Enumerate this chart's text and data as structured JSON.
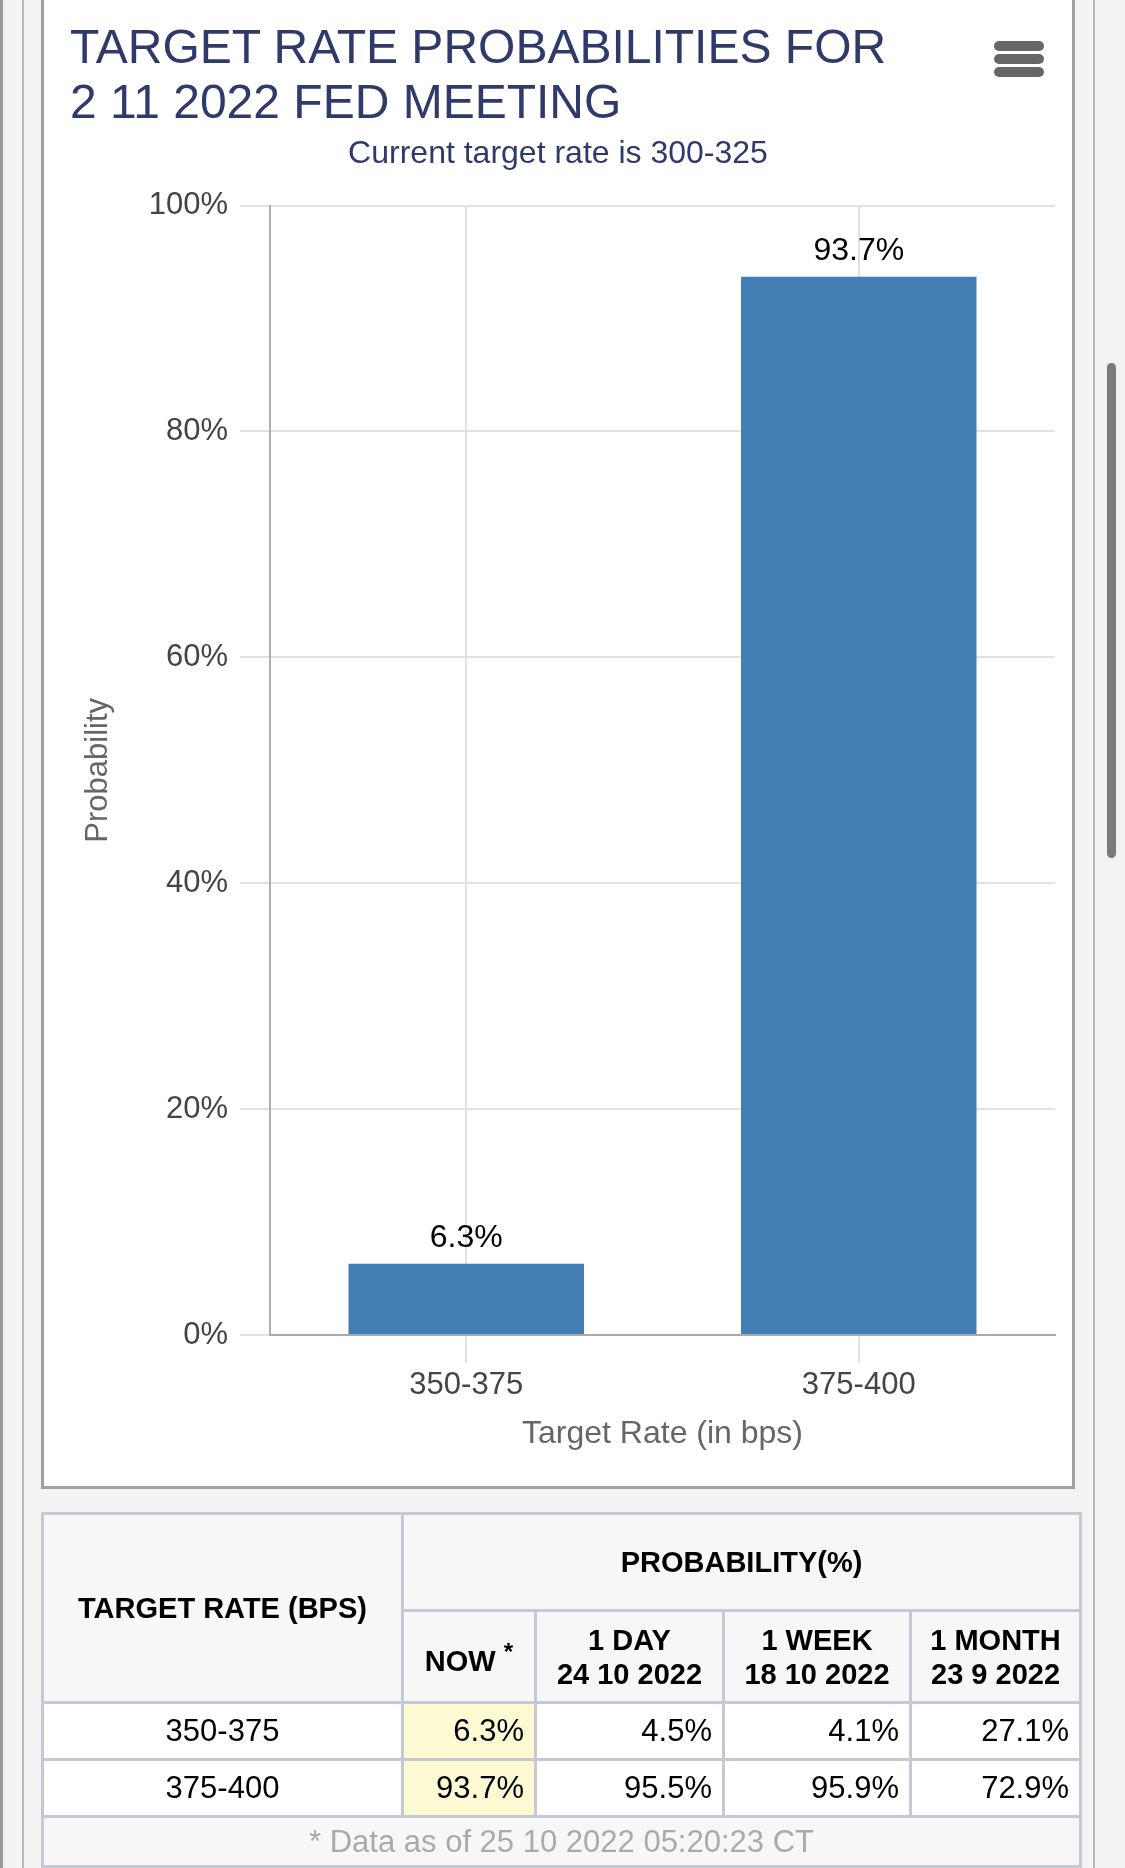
{
  "chart_data": [
    {
      "type": "bar",
      "title": "TARGET RATE PROBABILITIES FOR 2 11 2022 FED MEETING",
      "subtitle": "Current target rate is 300-325",
      "xlabel": "Target Rate (in bps)",
      "ylabel": "Probability",
      "categories": [
        "350-375",
        "375-400"
      ],
      "values": [
        6.3,
        93.7
      ],
      "value_labels": [
        "6.3%",
        "93.7%"
      ],
      "color": "#437fb4",
      "ylim": [
        0,
        100
      ],
      "yticks": [
        {
          "value": 0,
          "label": "0%"
        },
        {
          "value": 20,
          "label": "20%"
        },
        {
          "value": 40,
          "label": "40%"
        },
        {
          "value": 60,
          "label": "60%"
        },
        {
          "value": 80,
          "label": "80%"
        },
        {
          "value": 100,
          "label": "100%"
        }
      ],
      "grid": true
    },
    {
      "type": "other",
      "title": "PROBABILITY(%)",
      "ylabel": "TARGET RATE (BPS)",
      "categories": [
        "350-375",
        "375-400"
      ],
      "series": [
        {
          "name": "NOW $^{*}$",
          "color": "#fbfad3",
          "values": [
            6.3,
            93.7
          ],
          "value_labels": [
            "6.3%",
            "93.7%"
          ]
        },
        {
          "name": "1 DAY\n24 10 2022",
          "color": "#ffffff",
          "values": [
            4.5,
            95.5
          ],
          "value_labels": [
            "4.5%",
            "95.5%"
          ]
        },
        {
          "name": "1 WEEK\n18 10 2022",
          "color": "#ffffff",
          "values": [
            4.1,
            95.9
          ],
          "value_labels": [
            "4.1%",
            "95.9%"
          ]
        },
        {
          "name": "1 MONTH\n23 9 2022",
          "color": "#ffffff",
          "values": [
            27.1,
            72.9
          ],
          "value_labels": [
            "27.1%",
            "72.9%"
          ]
        }
      ],
      "annotations": [
        "* Data as of 25 10 2022 05:20:23 CT"
      ]
    }
  ]
}
